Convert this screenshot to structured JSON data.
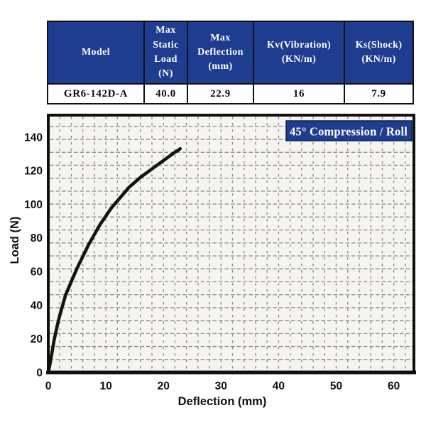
{
  "table": {
    "headers": [
      "Model",
      "Max\nStatic\nLoad\n(N)",
      "Max\nDeflection\n(mm)",
      "Kv(Vibration)\n(KN/m)",
      "Ks(Shock)\n(KN/m)"
    ],
    "row": [
      "GR6-142D-A",
      "40.0",
      "22.9",
      "16",
      "7.9"
    ]
  },
  "chart_data": {
    "type": "line",
    "badge": "45° Compression / Roll",
    "xlabel": "Deflection (mm)",
    "ylabel": "Load (N)",
    "x_ticks": [
      0,
      10,
      20,
      30,
      40,
      50,
      60
    ],
    "y_ticks": [
      0,
      20,
      40,
      60,
      80,
      100,
      120,
      140
    ],
    "xlim": [
      0,
      63.5
    ],
    "ylim": [
      0,
      153
    ],
    "grid": {
      "on": true,
      "style": "fine-dashed",
      "x_step_mm": 2,
      "y_step_n": 7.7
    },
    "legend_position": "top-right-badge",
    "series": [
      {
        "name": "45° Compression / Roll load-deflection curve",
        "max_static_load_n": 40.0,
        "max_deflection_mm": 22.9,
        "x": [
          0,
          0.3,
          0.7,
          1,
          1.5,
          2,
          2.5,
          3,
          4,
          5,
          6,
          7,
          8,
          9,
          10,
          11,
          12,
          13,
          14,
          15,
          16,
          17,
          18,
          19,
          20,
          21,
          22,
          22.5,
          22.9
        ],
        "y": [
          0,
          5,
          13,
          19,
          27,
          34,
          40,
          46,
          54,
          62,
          69,
          76,
          82,
          88,
          93,
          98,
          102,
          106,
          110,
          113,
          116,
          118.5,
          121,
          123.5,
          126,
          128.5,
          131,
          132,
          133
        ]
      }
    ],
    "colors": {
      "accent_blue": "#1e3c90",
      "curve": "#141414",
      "grid": "#8f8f8f",
      "plot_bg": "#f5f4f1",
      "frame": "#101010"
    }
  }
}
